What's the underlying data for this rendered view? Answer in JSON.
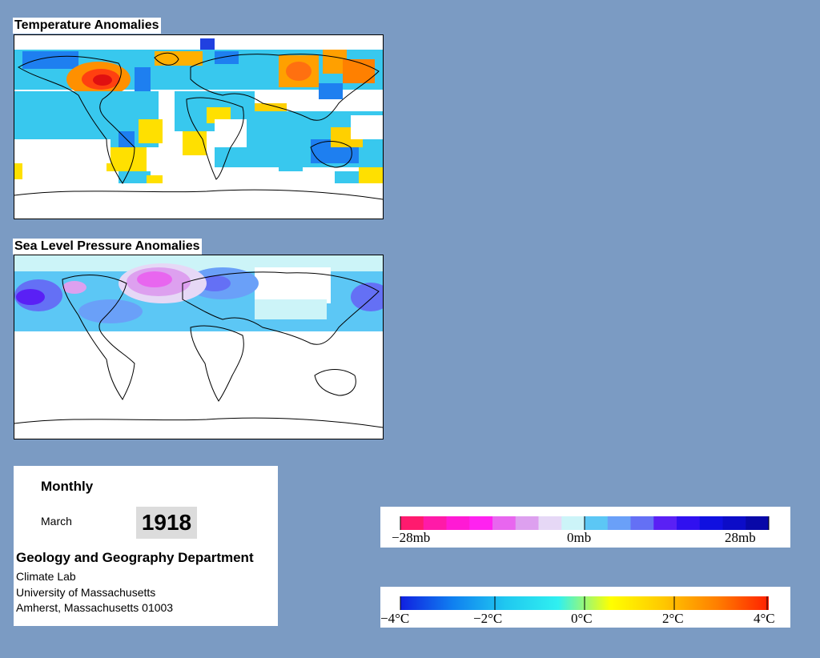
{
  "temperature_panel": {
    "title": "Temperature Anomalies"
  },
  "pressure_panel": {
    "title": "Sea Level Pressure Anomalies"
  },
  "info": {
    "frequency": "Monthly",
    "month": "March",
    "year": "1918",
    "department": "Geology and Geography Department",
    "lab": "Climate Lab",
    "university": "University of Massachusetts",
    "address": "Amherst, Massachusetts 01003"
  },
  "pressure_legend": {
    "labels": [
      "−28mb",
      "0mb",
      "28mb"
    ],
    "colors": [
      "#ff1a6e",
      "#ff1aa8",
      "#ff1ad4",
      "#ff22f0",
      "#e866ef",
      "#dda0ef",
      "#e6d8f6",
      "#ccf4f8",
      "#5cc7f5",
      "#6aa0f8",
      "#6470f5",
      "#5a20f5",
      "#3010f0",
      "#1010e0",
      "#0c0cc8",
      "#0808a8"
    ]
  },
  "temperature_legend": {
    "labels": [
      "−4°C",
      "−2°C",
      "0°C",
      "2°C",
      "4°C"
    ],
    "gradient": [
      "#1020e0",
      "#1080f0",
      "#20c8f0",
      "#30f0f0",
      "#ffff00",
      "#ffc800",
      "#ff8000",
      "#ff2000"
    ]
  }
}
